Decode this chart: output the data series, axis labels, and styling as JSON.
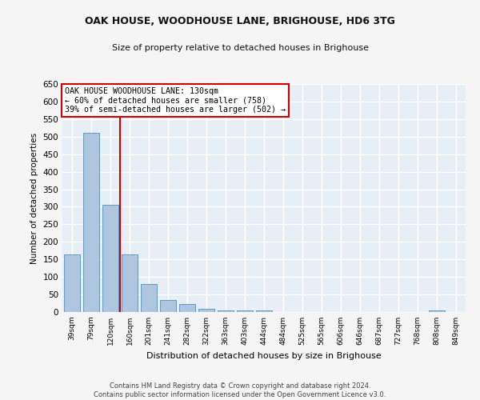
{
  "title": "OAK HOUSE, WOODHOUSE LANE, BRIGHOUSE, HD6 3TG",
  "subtitle": "Size of property relative to detached houses in Brighouse",
  "xlabel": "Distribution of detached houses by size in Brighouse",
  "ylabel": "Number of detached properties",
  "categories": [
    "39sqm",
    "79sqm",
    "120sqm",
    "160sqm",
    "201sqm",
    "241sqm",
    "282sqm",
    "322sqm",
    "363sqm",
    "403sqm",
    "444sqm",
    "484sqm",
    "525sqm",
    "565sqm",
    "606sqm",
    "646sqm",
    "687sqm",
    "727sqm",
    "768sqm",
    "808sqm",
    "849sqm"
  ],
  "values": [
    165,
    510,
    305,
    165,
    80,
    35,
    22,
    8,
    5,
    5,
    5,
    0,
    0,
    0,
    0,
    0,
    0,
    0,
    0,
    5,
    0
  ],
  "bar_color": "#aec6df",
  "bar_edge_color": "#6699bb",
  "property_line_x": 2.5,
  "property_line_color": "#cc0000",
  "annotation_text": "OAK HOUSE WOODHOUSE LANE: 130sqm\n← 60% of detached houses are smaller (758)\n39% of semi-detached houses are larger (502) →",
  "annotation_box_facecolor": "#ffffff",
  "annotation_box_edgecolor": "#cc0000",
  "ylim": [
    0,
    650
  ],
  "yticks": [
    0,
    50,
    100,
    150,
    200,
    250,
    300,
    350,
    400,
    450,
    500,
    550,
    600,
    650
  ],
  "bg_color": "#e8eef5",
  "grid_color": "#ffffff",
  "fig_bg_color": "#f5f5f5",
  "footer_line1": "Contains HM Land Registry data © Crown copyright and database right 2024.",
  "footer_line2": "Contains public sector information licensed under the Open Government Licence v3.0."
}
